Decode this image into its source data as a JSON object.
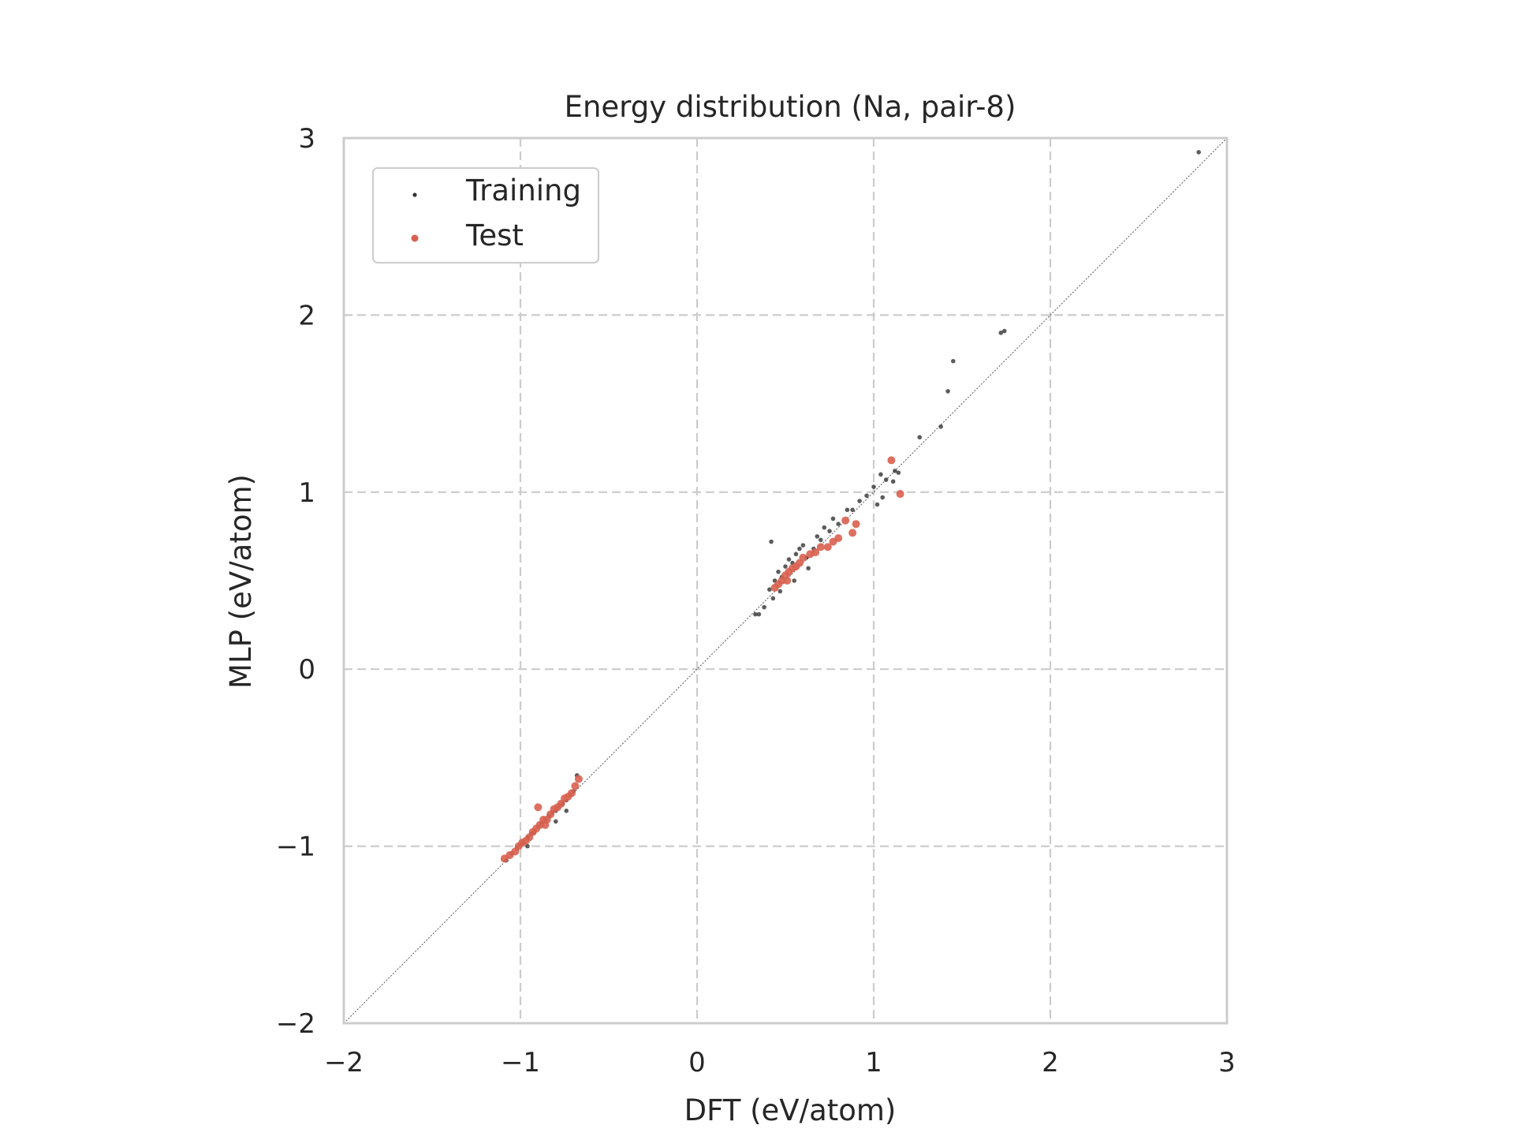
{
  "chart_data": {
    "type": "scatter",
    "title": "Energy distribution (Na, pair-8)",
    "xlabel": "DFT (eV/atom)",
    "ylabel": "MLP (eV/atom)",
    "xlim": [
      -2,
      3
    ],
    "ylim": [
      -2,
      3
    ],
    "xticks": [
      -2,
      -1,
      0,
      1,
      2,
      3
    ],
    "yticks": [
      -2,
      -1,
      0,
      1,
      2,
      3
    ],
    "xtick_labels": [
      "−2",
      "−1",
      "0",
      "1",
      "2",
      "3"
    ],
    "ytick_labels": [
      "−2",
      "−1",
      "0",
      "1",
      "2",
      "3"
    ],
    "grid": true,
    "legend_position": "top-left",
    "reference_line": "y = x",
    "colors": {
      "training": "#333333",
      "test": "#d9604f",
      "grid": "#cccccc",
      "frame": "#cccccc"
    },
    "series": [
      {
        "name": "Training",
        "points": [
          [
            -1.08,
            -1.08
          ],
          [
            -1.05,
            -1.04
          ],
          [
            -1.02,
            -1.01
          ],
          [
            -1.0,
            -0.99
          ],
          [
            -0.98,
            -0.98
          ],
          [
            -0.96,
            -0.95
          ],
          [
            -0.94,
            -0.93
          ],
          [
            -0.92,
            -0.92
          ],
          [
            -0.9,
            -0.89
          ],
          [
            -0.88,
            -0.87
          ],
          [
            -0.86,
            -0.86
          ],
          [
            -0.84,
            -0.83
          ],
          [
            -0.82,
            -0.81
          ],
          [
            -0.8,
            -0.8
          ],
          [
            -0.78,
            -0.77
          ],
          [
            -0.76,
            -0.76
          ],
          [
            -0.74,
            -0.74
          ],
          [
            -0.72,
            -0.71
          ],
          [
            -0.7,
            -0.69
          ],
          [
            -0.68,
            -0.6
          ],
          [
            -0.74,
            -0.8
          ],
          [
            -0.8,
            -0.86
          ],
          [
            -0.96,
            -1.0
          ],
          [
            0.33,
            0.31
          ],
          [
            0.35,
            0.31
          ],
          [
            0.38,
            0.35
          ],
          [
            0.41,
            0.45
          ],
          [
            0.43,
            0.4
          ],
          [
            0.44,
            0.5
          ],
          [
            0.46,
            0.55
          ],
          [
            0.48,
            0.52
          ],
          [
            0.5,
            0.58
          ],
          [
            0.52,
            0.62
          ],
          [
            0.54,
            0.6
          ],
          [
            0.56,
            0.65
          ],
          [
            0.58,
            0.68
          ],
          [
            0.6,
            0.7
          ],
          [
            0.62,
            0.63
          ],
          [
            0.63,
            0.57
          ],
          [
            0.66,
            0.68
          ],
          [
            0.68,
            0.75
          ],
          [
            0.7,
            0.73
          ],
          [
            0.72,
            0.8
          ],
          [
            0.75,
            0.78
          ],
          [
            0.77,
            0.85
          ],
          [
            0.8,
            0.82
          ],
          [
            0.85,
            0.9
          ],
          [
            0.88,
            0.9
          ],
          [
            0.92,
            0.95
          ],
          [
            0.96,
            0.98
          ],
          [
            1.0,
            1.03
          ],
          [
            1.04,
            1.1
          ],
          [
            1.07,
            1.07
          ],
          [
            1.11,
            1.06
          ],
          [
            1.12,
            1.12
          ],
          [
            1.14,
            1.11
          ],
          [
            1.02,
            0.93
          ],
          [
            1.05,
            0.97
          ],
          [
            0.42,
            0.72
          ],
          [
            0.47,
            0.44
          ],
          [
            0.55,
            0.5
          ],
          [
            1.26,
            1.31
          ],
          [
            1.38,
            1.37
          ],
          [
            1.42,
            1.57
          ],
          [
            1.45,
            1.74
          ],
          [
            1.72,
            1.9
          ],
          [
            1.74,
            1.91
          ],
          [
            2.84,
            2.92
          ]
        ]
      },
      {
        "name": "Test",
        "points": [
          [
            -1.09,
            -1.07
          ],
          [
            -1.06,
            -1.05
          ],
          [
            -1.03,
            -1.03
          ],
          [
            -1.01,
            -1.0
          ],
          [
            -0.99,
            -0.98
          ],
          [
            -0.97,
            -0.97
          ],
          [
            -0.95,
            -0.95
          ],
          [
            -0.93,
            -0.92
          ],
          [
            -0.91,
            -0.9
          ],
          [
            -0.89,
            -0.88
          ],
          [
            -0.87,
            -0.85
          ],
          [
            -0.85,
            -0.85
          ],
          [
            -0.83,
            -0.82
          ],
          [
            -0.81,
            -0.79
          ],
          [
            -0.79,
            -0.78
          ],
          [
            -0.77,
            -0.76
          ],
          [
            -0.75,
            -0.73
          ],
          [
            -0.73,
            -0.72
          ],
          [
            -0.71,
            -0.7
          ],
          [
            -0.69,
            -0.66
          ],
          [
            -0.67,
            -0.62
          ],
          [
            -0.9,
            -0.78
          ],
          [
            -0.86,
            -0.88
          ],
          [
            0.44,
            0.46
          ],
          [
            0.46,
            0.48
          ],
          [
            0.48,
            0.5
          ],
          [
            0.5,
            0.53
          ],
          [
            0.52,
            0.55
          ],
          [
            0.54,
            0.57
          ],
          [
            0.56,
            0.58
          ],
          [
            0.6,
            0.63
          ],
          [
            0.64,
            0.65
          ],
          [
            0.67,
            0.66
          ],
          [
            0.7,
            0.69
          ],
          [
            0.74,
            0.69
          ],
          [
            0.77,
            0.72
          ],
          [
            0.8,
            0.74
          ],
          [
            0.84,
            0.84
          ],
          [
            0.88,
            0.77
          ],
          [
            0.9,
            0.82
          ],
          [
            0.51,
            0.5
          ],
          [
            0.58,
            0.6
          ],
          [
            1.1,
            1.18
          ],
          [
            1.15,
            0.99
          ]
        ]
      }
    ]
  }
}
